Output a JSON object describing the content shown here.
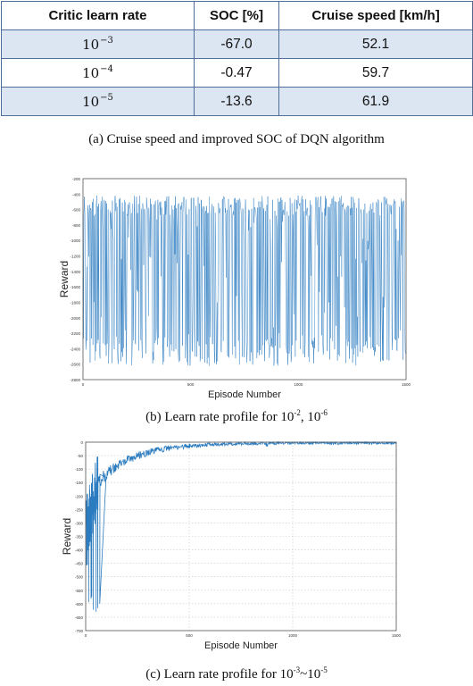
{
  "table": {
    "headers": [
      "Critic learn rate",
      "SOC [%]",
      "Cruise speed [km/h]"
    ],
    "rows": [
      {
        "rate_base": "10",
        "rate_exp": "−3",
        "soc": "-67.0",
        "speed": "52.1"
      },
      {
        "rate_base": "10",
        "rate_exp": "−4",
        "soc": "-0.47",
        "speed": "59.7"
      },
      {
        "rate_base": "10",
        "rate_exp": "−5",
        "soc": "-13.6",
        "speed": "61.9"
      }
    ]
  },
  "captions": {
    "a": "(a) Cruise speed and improved SOC of DQN algorithm",
    "b_prefix": "(b) Learn rate profile for 10",
    "b_exp1": "-2",
    "b_mid": ", 10",
    "b_exp2": "-6",
    "c_prefix": "(c) Learn rate profile for 10",
    "c_exp1": "-3",
    "c_mid": "~10",
    "c_exp2": "-5"
  },
  "chart_data": [
    {
      "type": "line",
      "xlabel": "Episode Number",
      "ylabel": "Reward",
      "xlim": [
        0,
        1500
      ],
      "ylim": [
        -2800,
        -200
      ],
      "xticks": [
        "0",
        "500",
        "1000",
        "1500"
      ],
      "yticks": [
        "-200",
        "-400",
        "-600",
        "-800",
        "-1000",
        "-1200",
        "-1400",
        "-1600",
        "-1800",
        "-2000",
        "-2200",
        "-2400",
        "-2600",
        "-2800"
      ],
      "grid": true,
      "color": "#2a7bbf",
      "series_description_range": {
        "upper_envelope": -420,
        "lower_envelope": -2620
      }
    },
    {
      "type": "line",
      "xlabel": "Episode Number",
      "ylabel": "Reward",
      "xlim": [
        0,
        1500
      ],
      "ylim": [
        -700,
        0
      ],
      "xticks": [
        "0",
        "500",
        "1000",
        "1500"
      ],
      "yticks": [
        "0",
        "-50",
        "-100",
        "-150",
        "-200",
        "-250",
        "-300",
        "-350",
        "-400",
        "-450",
        "-500",
        "-550",
        "-600",
        "-650",
        "-700"
      ],
      "grid": true,
      "color": "#2a7bbf",
      "key_points": {
        "min_value": -630,
        "converged_value": -3
      }
    }
  ]
}
